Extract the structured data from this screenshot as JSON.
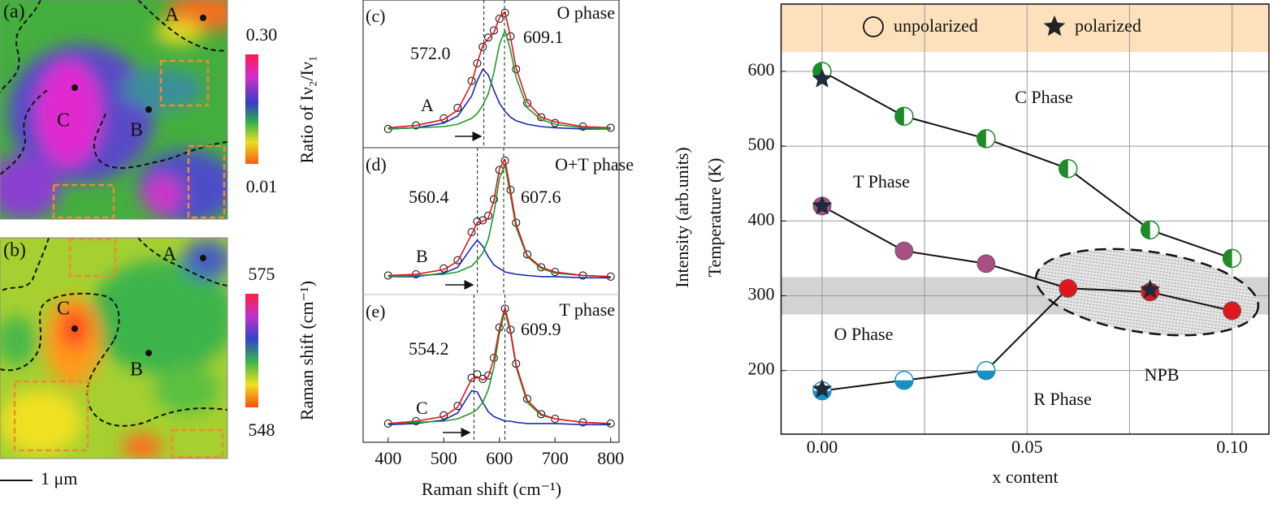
{
  "chart_data": [
    {
      "type": "image",
      "panel_label": "(a)",
      "point_labels": [
        "A",
        "B",
        "C"
      ],
      "colorbar": {
        "label": "Ratio of Iν₂/Iν₁",
        "clim": [
          0.01,
          0.3
        ],
        "ticks": [
          {
            "value": 0.3,
            "label": "0.30"
          },
          0.01
        ]
      }
    },
    {
      "type": "image",
      "panel_label": "(b)",
      "point_labels": [
        "A",
        "B",
        "C"
      ],
      "scale_bar": "1 μm",
      "colorbar": {
        "label": "Raman shift (cm⁻¹)",
        "clim": [
          548,
          575
        ],
        "ticks": [
          575,
          548
        ]
      }
    },
    {
      "type": "line",
      "panel_label": "(c)",
      "title": "O phase",
      "sample_label": "A",
      "x": [
        400,
        450,
        500,
        525,
        550,
        560,
        570,
        580,
        590,
        600,
        610,
        620,
        630,
        650,
        675,
        700,
        750,
        800
      ],
      "xlim": [
        355,
        815
      ],
      "ylim": [
        -0.12,
        1.14
      ],
      "peaks": [
        572.0,
        609.1
      ],
      "peak_labels": [
        "572.0",
        "609.1"
      ],
      "series": [
        {
          "color": "#000000",
          "marker": "circle",
          "values": [
            0.04,
            0.07,
            0.13,
            0.22,
            0.45,
            0.6,
            0.74,
            0.82,
            0.88,
            0.98,
            1.03,
            0.83,
            0.55,
            0.26,
            0.14,
            0.09,
            0.06,
            0.05
          ]
        },
        {
          "color": "#1a2bb0",
          "values": [
            0.04,
            0.05,
            0.09,
            0.15,
            0.32,
            0.45,
            0.55,
            0.5,
            0.37,
            0.26,
            0.19,
            0.14,
            0.11,
            0.08,
            0.06,
            0.05,
            0.04,
            0.04
          ]
        },
        {
          "color": "#1e9a2a",
          "values": [
            0.04,
            0.05,
            0.06,
            0.08,
            0.13,
            0.17,
            0.24,
            0.34,
            0.52,
            0.76,
            0.88,
            0.71,
            0.48,
            0.22,
            0.12,
            0.08,
            0.05,
            0.04
          ]
        },
        {
          "color": "#e0161e",
          "values": [
            0.05,
            0.07,
            0.12,
            0.2,
            0.43,
            0.6,
            0.75,
            0.81,
            0.86,
            0.99,
            1.04,
            0.82,
            0.56,
            0.27,
            0.14,
            0.1,
            0.06,
            0.05
          ]
        }
      ]
    },
    {
      "type": "line",
      "panel_label": "(d)",
      "title": "O+T phase",
      "sample_label": "B",
      "x": [
        400,
        450,
        500,
        525,
        550,
        560,
        570,
        580,
        590,
        600,
        610,
        620,
        630,
        650,
        675,
        700,
        750,
        800
      ],
      "xlim": [
        355,
        815
      ],
      "ylim": [
        -0.12,
        1.14
      ],
      "peaks": [
        560.4,
        607.6
      ],
      "peak_labels": [
        "560.4",
        "607.6"
      ],
      "series": [
        {
          "color": "#000000",
          "marker": "circle",
          "values": [
            0.05,
            0.06,
            0.11,
            0.18,
            0.42,
            0.51,
            0.52,
            0.56,
            0.7,
            0.95,
            1.03,
            0.78,
            0.5,
            0.23,
            0.12,
            0.08,
            0.05,
            0.04
          ]
        },
        {
          "color": "#1a2bb0",
          "values": [
            0.04,
            0.04,
            0.07,
            0.12,
            0.29,
            0.35,
            0.3,
            0.21,
            0.14,
            0.11,
            0.08,
            0.07,
            0.06,
            0.05,
            0.04,
            0.04,
            0.03,
            0.03
          ]
        },
        {
          "color": "#1e9a2a",
          "values": [
            0.04,
            0.05,
            0.06,
            0.08,
            0.13,
            0.18,
            0.24,
            0.36,
            0.58,
            0.88,
            0.99,
            0.73,
            0.46,
            0.21,
            0.11,
            0.07,
            0.05,
            0.04
          ]
        },
        {
          "color": "#e0161e",
          "values": [
            0.05,
            0.06,
            0.1,
            0.17,
            0.4,
            0.5,
            0.51,
            0.54,
            0.69,
            0.96,
            1.04,
            0.77,
            0.49,
            0.22,
            0.12,
            0.08,
            0.05,
            0.04
          ]
        }
      ]
    },
    {
      "type": "line",
      "panel_label": "(e)",
      "title": "T phase",
      "sample_label": "C",
      "x": [
        400,
        450,
        500,
        525,
        550,
        560,
        570,
        580,
        590,
        600,
        610,
        620,
        630,
        650,
        675,
        700,
        750,
        800
      ],
      "xlim": [
        355,
        815
      ],
      "ylim": [
        -0.12,
        1.14
      ],
      "xticks": [
        400,
        500,
        600,
        700,
        800
      ],
      "xlabel": "Raman shift (cm⁻¹)",
      "ylabel": "Intensity (arb.units)",
      "peaks": [
        554.2,
        609.9
      ],
      "peak_labels": [
        "554.2",
        "609.9"
      ],
      "series": [
        {
          "color": "#000000",
          "marker": "circle",
          "values": [
            0.04,
            0.06,
            0.11,
            0.19,
            0.43,
            0.46,
            0.42,
            0.45,
            0.6,
            0.86,
            1.02,
            0.84,
            0.55,
            0.25,
            0.12,
            0.08,
            0.05,
            0.04
          ]
        },
        {
          "color": "#1a2bb0",
          "values": [
            0.03,
            0.04,
            0.07,
            0.13,
            0.32,
            0.31,
            0.22,
            0.14,
            0.1,
            0.08,
            0.06,
            0.06,
            0.05,
            0.04,
            0.04,
            0.04,
            0.03,
            0.03
          ]
        },
        {
          "color": "#1e9a2a",
          "values": [
            0.04,
            0.05,
            0.06,
            0.08,
            0.13,
            0.16,
            0.22,
            0.33,
            0.52,
            0.81,
            1.0,
            0.81,
            0.52,
            0.22,
            0.11,
            0.08,
            0.05,
            0.04
          ]
        },
        {
          "color": "#e0161e",
          "values": [
            0.04,
            0.06,
            0.1,
            0.18,
            0.42,
            0.44,
            0.41,
            0.44,
            0.59,
            0.85,
            1.03,
            0.83,
            0.54,
            0.24,
            0.12,
            0.08,
            0.05,
            0.04
          ]
        }
      ]
    },
    {
      "type": "scatter",
      "xlabel": "x content",
      "ylabel": "Temperature (K)",
      "xlim": [
        -0.01,
        0.109
      ],
      "ylim": [
        115,
        690
      ],
      "xticks": [
        {
          "value": 0,
          "label": "0.00"
        },
        {
          "value": 0.05,
          "label": "0.05"
        },
        {
          "value": 0.1,
          "label": "0.10"
        }
      ],
      "xminorticks": [
        0.025,
        0.075
      ],
      "yticks": [
        200,
        300,
        400,
        500,
        600
      ],
      "grid": true,
      "bands": [
        {
          "range": [
            275,
            325
          ],
          "color": "#d3d3d3"
        },
        {
          "range": [
            626,
            690
          ],
          "color": "#fde0bc"
        }
      ],
      "legend": [
        {
          "label": "unpolarized",
          "marker": "circle"
        },
        {
          "label": "polarized",
          "marker": "star"
        }
      ],
      "annotations": [
        "C Phase",
        "T Phase",
        "O Phase",
        "R Phase",
        "NPB"
      ],
      "series": [
        {
          "marker": "half-left",
          "color": "#1e8a2a",
          "line": true,
          "x": [
            0,
            0.02,
            0.04,
            0.06,
            0.08,
            0.1
          ],
          "values": [
            600,
            540,
            510,
            470,
            388,
            350
          ]
        },
        {
          "marker": "circle",
          "colors": [
            "#a94f86",
            "#a94f86",
            "#a94f86",
            "#e0161e",
            "#e0161e",
            "#e0161e"
          ],
          "line": true,
          "x": [
            0,
            0.02,
            0.04,
            0.06,
            0.08,
            0.1
          ],
          "values": [
            420,
            360,
            343,
            310,
            305,
            280
          ]
        },
        {
          "marker": "half-bottom",
          "color": "#1a8fc4",
          "line": true,
          "x": [
            0,
            0.02,
            0.04
          ],
          "values": [
            173,
            187,
            200
          ]
        },
        {
          "marker": "star",
          "color": "#1f2a3c",
          "line": false,
          "x": [
            0,
            0,
            0,
            0.08
          ],
          "values": [
            590,
            420,
            175,
            308
          ]
        }
      ]
    }
  ]
}
